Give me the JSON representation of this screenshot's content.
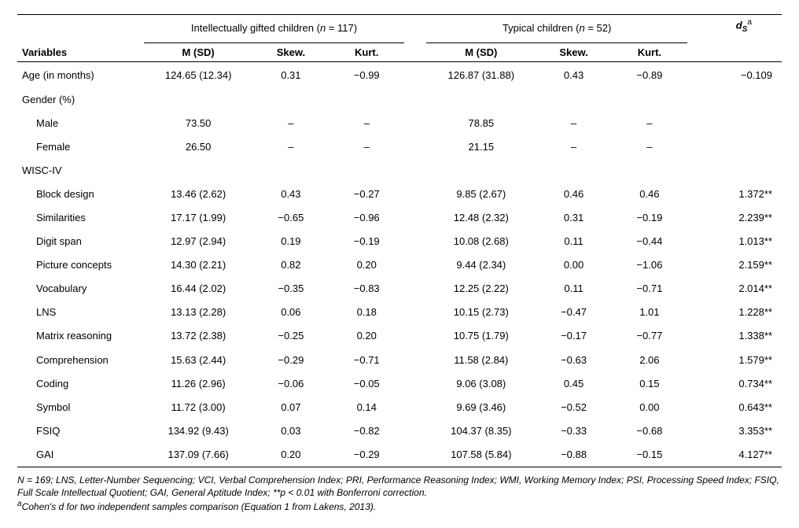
{
  "header": {
    "group1_label_prefix": "Intellectually gifted children (",
    "group1_n_ital": "n",
    "group1_label_mid": " = 117)",
    "group2_label_prefix": "Typical children (",
    "group2_n_ital": "n",
    "group2_label_mid": " = 52)",
    "ds_label": "d",
    "ds_sub": "S",
    "ds_sup": "a",
    "variables_label": "Variables",
    "msd_label": "M (SD)",
    "skew_label": "Skew.",
    "kurt_label": "Kurt."
  },
  "rows": [
    {
      "indent": false,
      "var": "Age (in months)",
      "m1": "124.65 (12.34)",
      "s1": "0.31",
      "k1": "−0.99",
      "m2": "126.87 (31.88)",
      "s2": "0.43",
      "k2": "−0.89",
      "ds": "−0.109"
    },
    {
      "indent": false,
      "var": "Gender (%)",
      "m1": "",
      "s1": "",
      "k1": "",
      "m2": "",
      "s2": "",
      "k2": "",
      "ds": ""
    },
    {
      "indent": true,
      "var": "Male",
      "m1": "73.50",
      "s1": "–",
      "k1": "–",
      "m2": "78.85",
      "s2": "–",
      "k2": "–",
      "ds": ""
    },
    {
      "indent": true,
      "var": "Female",
      "m1": "26.50",
      "s1": "–",
      "k1": "–",
      "m2": "21.15",
      "s2": "–",
      "k2": "–",
      "ds": ""
    },
    {
      "indent": false,
      "var": "WISC-IV",
      "m1": "",
      "s1": "",
      "k1": "",
      "m2": "",
      "s2": "",
      "k2": "",
      "ds": ""
    },
    {
      "indent": true,
      "var": "Block design",
      "m1": "13.46 (2.62)",
      "s1": "0.43",
      "k1": "−0.27",
      "m2": "9.85 (2.67)",
      "s2": "0.46",
      "k2": "0.46",
      "ds": "1.372**"
    },
    {
      "indent": true,
      "var": "Similarities",
      "m1": "17.17 (1.99)",
      "s1": "−0.65",
      "k1": "−0.96",
      "m2": "12.48 (2.32)",
      "s2": "0.31",
      "k2": "−0.19",
      "ds": "2.239**"
    },
    {
      "indent": true,
      "var": "Digit span",
      "m1": "12.97 (2.94)",
      "s1": "0.19",
      "k1": "−0.19",
      "m2": "10.08 (2.68)",
      "s2": "0.11",
      "k2": "−0.44",
      "ds": "1.013**"
    },
    {
      "indent": true,
      "var": "Picture concepts",
      "m1": "14.30 (2.21)",
      "s1": "0.82",
      "k1": "0.20",
      "m2": "9.44 (2.34)",
      "s2": "0.00",
      "k2": "−1.06",
      "ds": "2.159**"
    },
    {
      "indent": true,
      "var": "Vocabulary",
      "m1": "16.44 (2.02)",
      "s1": "−0.35",
      "k1": "−0.83",
      "m2": "12.25 (2.22)",
      "s2": "0.11",
      "k2": "−0.71",
      "ds": "2.014**"
    },
    {
      "indent": true,
      "var": "LNS",
      "m1": "13.13 (2.28)",
      "s1": "0.06",
      "k1": "0.18",
      "m2": "10.15 (2.73)",
      "s2": "−0.47",
      "k2": "1.01",
      "ds": "1.228**"
    },
    {
      "indent": true,
      "var": "Matrix reasoning",
      "m1": "13.72 (2.38)",
      "s1": "−0.25",
      "k1": "0.20",
      "m2": "10.75 (1.79)",
      "s2": "−0.17",
      "k2": "−0.77",
      "ds": "1.338**"
    },
    {
      "indent": true,
      "var": "Comprehension",
      "m1": "15.63 (2.44)",
      "s1": "−0.29",
      "k1": "−0.71",
      "m2": "11.58 (2.84)",
      "s2": "−0.63",
      "k2": "2.06",
      "ds": "1.579**"
    },
    {
      "indent": true,
      "var": "Coding",
      "m1": "11.26 (2.96)",
      "s1": "−0.06",
      "k1": "−0.05",
      "m2": "9.06 (3.08)",
      "s2": "0.45",
      "k2": "0.15",
      "ds": "0.734**"
    },
    {
      "indent": true,
      "var": "Symbol",
      "m1": "11.72 (3.00)",
      "s1": "0.07",
      "k1": "0.14",
      "m2": "9.69 (3.46)",
      "s2": "−0.52",
      "k2": "0.00",
      "ds": "0.643**"
    },
    {
      "indent": true,
      "var": "FSIQ",
      "m1": "134.92 (9.43)",
      "s1": "0.03",
      "k1": "−0.82",
      "m2": "104.37 (8.35)",
      "s2": "−0.33",
      "k2": "−0.68",
      "ds": "3.353**"
    },
    {
      "indent": true,
      "var": "GAI",
      "m1": "137.09 (7.66)",
      "s1": "0.20",
      "k1": "−0.29",
      "m2": "107.58 (5.84)",
      "s2": "−0.88",
      "k2": "−0.15",
      "ds": "4.127**"
    }
  ],
  "footnotes": {
    "line1": "N = 169; LNS, Letter-Number Sequencing; VCI, Verbal Comprehension Index; PRI, Performance Reasoning Index; WMI, Working Memory Index; PSI, Processing Speed Index; FSIQ, Full Scale Intellectual Quotient; GAI, General Aptitude Index; **p < 0.01 with Bonferroni correction.",
    "line2_sup": "a",
    "line2": "Cohen's d for two independent samples comparison (Equation 1 from Lakens, 2013)."
  }
}
